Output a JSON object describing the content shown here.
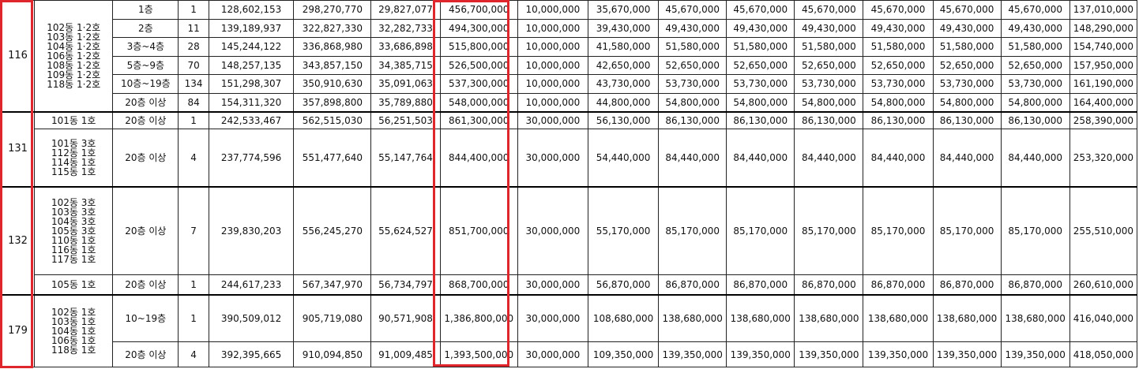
{
  "highlight_color": "#e0262d",
  "groups": [
    {
      "type": "116",
      "subgroups": [
        {
          "dong": "102동 1·2호\n103동 1·2호\n104동 1·2호\n106동 1·2호\n108동 1·2호\n109동 1·2호\n118동 1·2호",
          "rows": [
            {
              "floor": "1층",
              "count": "1",
              "land": "128,602,153",
              "building": "298,270,770",
              "vat": "29,827,077",
              "total": "456,700,000",
              "contract": "10,000,000",
              "middle_1": "35,670,000",
              "middle_2": "45,670,000",
              "middle_3": "45,670,000",
              "middle_4": "45,670,000",
              "middle_5": "45,670,000",
              "middle_6": "45,670,000",
              "middle_7": "45,670,000",
              "balance": "137,010,000"
            },
            {
              "floor": "2층",
              "count": "11",
              "land": "139,189,937",
              "building": "322,827,330",
              "vat": "32,282,733",
              "total": "494,300,000",
              "contract": "10,000,000",
              "middle_1": "39,430,000",
              "middle_2": "49,430,000",
              "middle_3": "49,430,000",
              "middle_4": "49,430,000",
              "middle_5": "49,430,000",
              "middle_6": "49,430,000",
              "middle_7": "49,430,000",
              "balance": "148,290,000"
            },
            {
              "floor": "3층~4층",
              "count": "28",
              "land": "145,244,122",
              "building": "336,868,980",
              "vat": "33,686,898",
              "total": "515,800,000",
              "contract": "10,000,000",
              "middle_1": "41,580,000",
              "middle_2": "51,580,000",
              "middle_3": "51,580,000",
              "middle_4": "51,580,000",
              "middle_5": "51,580,000",
              "middle_6": "51,580,000",
              "middle_7": "51,580,000",
              "balance": "154,740,000"
            },
            {
              "floor": "5층~9층",
              "count": "70",
              "land": "148,257,135",
              "building": "343,857,150",
              "vat": "34,385,715",
              "total": "526,500,000",
              "contract": "10,000,000",
              "middle_1": "42,650,000",
              "middle_2": "52,650,000",
              "middle_3": "52,650,000",
              "middle_4": "52,650,000",
              "middle_5": "52,650,000",
              "middle_6": "52,650,000",
              "middle_7": "52,650,000",
              "balance": "157,950,000"
            },
            {
              "floor": "10층~19층",
              "count": "134",
              "land": "151,298,307",
              "building": "350,910,630",
              "vat": "35,091,063",
              "total": "537,300,000",
              "contract": "10,000,000",
              "middle_1": "43,730,000",
              "middle_2": "53,730,000",
              "middle_3": "53,730,000",
              "middle_4": "53,730,000",
              "middle_5": "53,730,000",
              "middle_6": "53,730,000",
              "middle_7": "53,730,000",
              "balance": "161,190,000"
            },
            {
              "floor": "20층 이상",
              "count": "84",
              "land": "154,311,320",
              "building": "357,898,800",
              "vat": "35,789,880",
              "total": "548,000,000",
              "contract": "10,000,000",
              "middle_1": "44,800,000",
              "middle_2": "54,800,000",
              "middle_3": "54,800,000",
              "middle_4": "54,800,000",
              "middle_5": "54,800,000",
              "middle_6": "54,800,000",
              "middle_7": "54,800,000",
              "balance": "164,400,000"
            }
          ]
        }
      ]
    },
    {
      "type": "131",
      "subgroups": [
        {
          "dong": "101동 1호",
          "rows": [
            {
              "floor": "20층 이상",
              "count": "1",
              "land": "242,533,467",
              "building": "562,515,030",
              "vat": "56,251,503",
              "total": "861,300,000",
              "contract": "30,000,000",
              "middle_1": "56,130,000",
              "middle_2": "86,130,000",
              "middle_3": "86,130,000",
              "middle_4": "86,130,000",
              "middle_5": "86,130,000",
              "middle_6": "86,130,000",
              "middle_7": "86,130,000",
              "balance": "258,390,000"
            }
          ]
        },
        {
          "dong": "101동 3호\n112동 1호\n114동 1호\n115동 1호",
          "rows": [
            {
              "floor": "20층 이상",
              "count": "4",
              "land": "237,774,596",
              "building": "551,477,640",
              "vat": "55,147,764",
              "total": "844,400,000",
              "contract": "30,000,000",
              "middle_1": "54,440,000",
              "middle_2": "84,440,000",
              "middle_3": "84,440,000",
              "middle_4": "84,440,000",
              "middle_5": "84,440,000",
              "middle_6": "84,440,000",
              "middle_7": "84,440,000",
              "balance": "253,320,000"
            }
          ]
        }
      ]
    },
    {
      "type": "132",
      "subgroups": [
        {
          "dong": "102동 3호\n103동 3호\n104동 3호\n105동 3호\n110동 1호\n116동 1호\n117동 1호",
          "rows": [
            {
              "floor": "20층 이상",
              "count": "7",
              "land": "239,830,203",
              "building": "556,245,270",
              "vat": "55,624,527",
              "total": "851,700,000",
              "contract": "30,000,000",
              "middle_1": "55,170,000",
              "middle_2": "85,170,000",
              "middle_3": "85,170,000",
              "middle_4": "85,170,000",
              "middle_5": "85,170,000",
              "middle_6": "85,170,000",
              "middle_7": "85,170,000",
              "balance": "255,510,000"
            }
          ]
        },
        {
          "dong": "105동 1호",
          "rows": [
            {
              "floor": "20층 이상",
              "count": "1",
              "land": "244,617,233",
              "building": "567,347,970",
              "vat": "56,734,797",
              "total": "868,700,000",
              "contract": "30,000,000",
              "middle_1": "56,870,000",
              "middle_2": "86,870,000",
              "middle_3": "86,870,000",
              "middle_4": "86,870,000",
              "middle_5": "86,870,000",
              "middle_6": "86,870,000",
              "middle_7": "86,870,000",
              "balance": "260,610,000"
            }
          ]
        }
      ]
    },
    {
      "type": "179",
      "subgroups": [
        {
          "dong": "102동 1호\n103동 1호\n104동 1호\n106동 1호\n118동 1호",
          "rows": [
            {
              "floor": "10~19층",
              "count": "1",
              "land": "390,509,012",
              "building": "905,719,080",
              "vat": "90,571,908",
              "total": "1,386,800,000",
              "contract": "30,000,000",
              "middle_1": "108,680,000",
              "middle_2": "138,680,000",
              "middle_3": "138,680,000",
              "middle_4": "138,680,000",
              "middle_5": "138,680,000",
              "middle_6": "138,680,000",
              "middle_7": "138,680,000",
              "balance": "416,040,000"
            },
            {
              "floor": "20층 이상",
              "count": "4",
              "land": "392,395,665",
              "building": "910,094,850",
              "vat": "91,009,485",
              "total": "1,393,500,000",
              "contract": "30,000,000",
              "middle_1": "109,350,000",
              "middle_2": "139,350,000",
              "middle_3": "139,350,000",
              "middle_4": "139,350,000",
              "middle_5": "139,350,000",
              "middle_6": "139,350,000",
              "middle_7": "139,350,000",
              "balance": "418,050,000"
            }
          ]
        }
      ]
    }
  ]
}
